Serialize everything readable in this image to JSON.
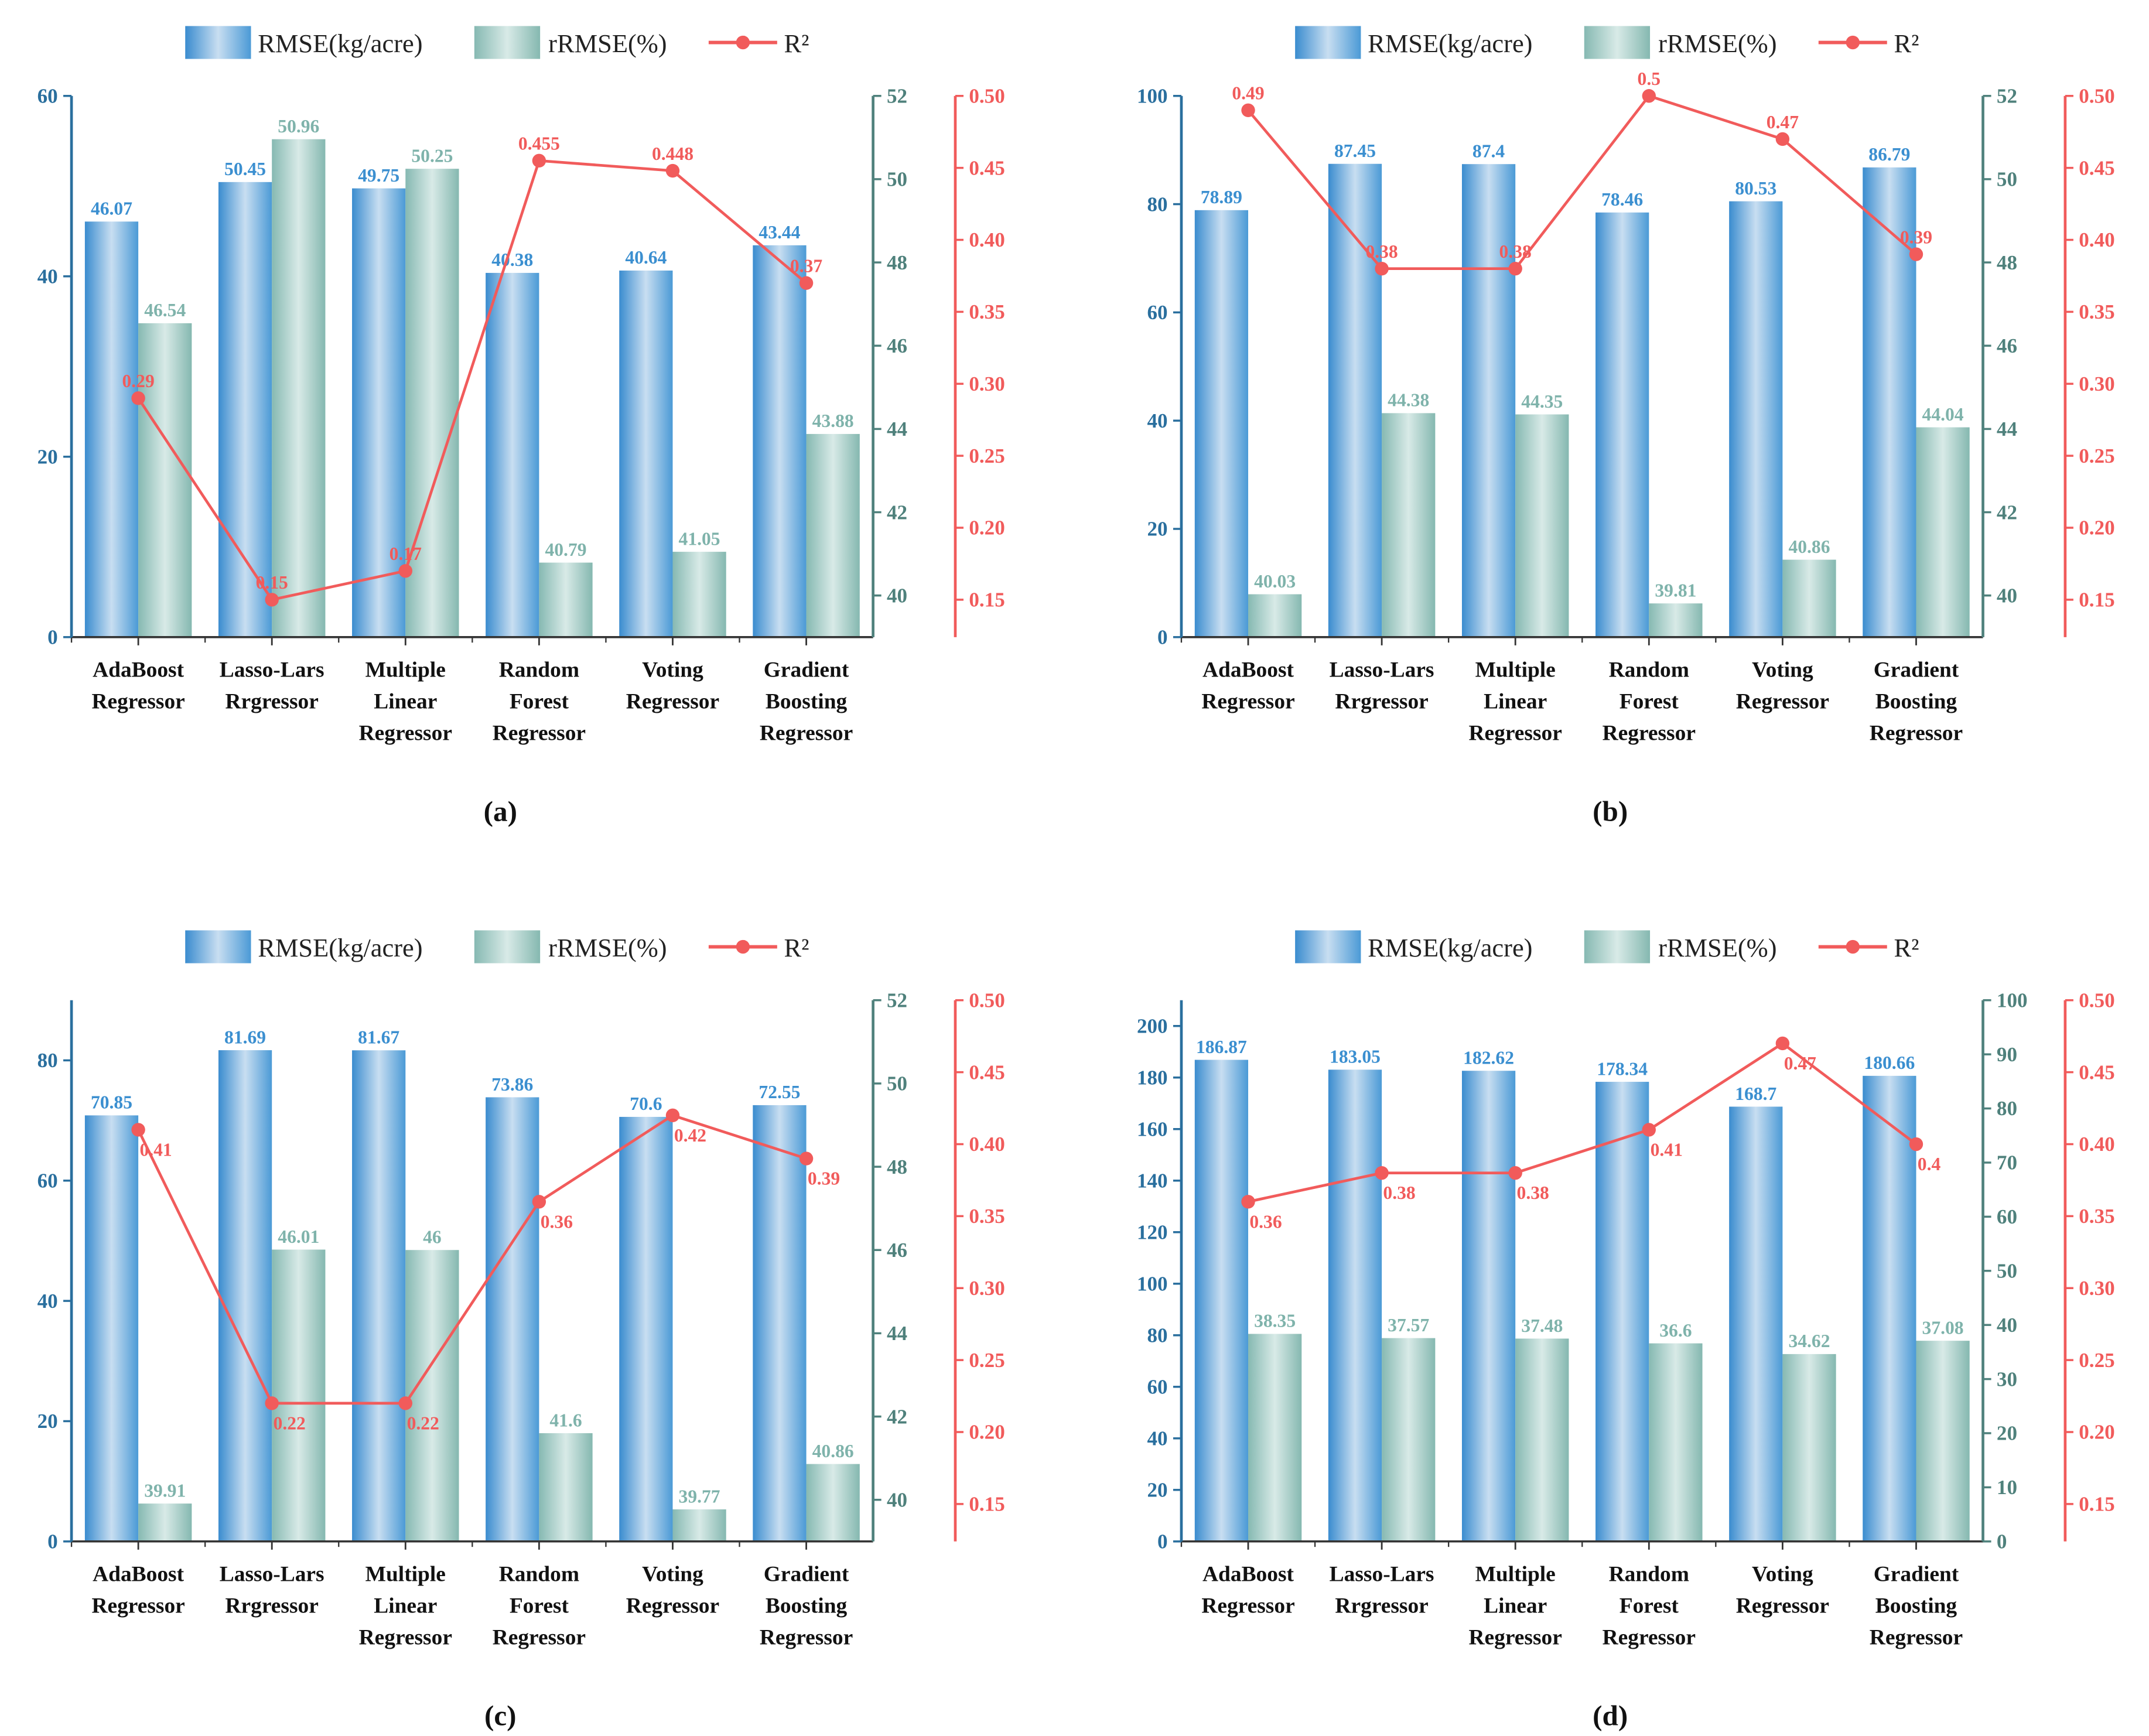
{
  "legend": {
    "rmse": "RMSE(kg/acre)",
    "rrmse": "rRMSE(%)",
    "r2": "R²"
  },
  "colors": {
    "rmse_axis": "#2a6f9e",
    "rrmse_axis": "#4f817c",
    "r2": "#f15b5b",
    "rmse_label": "#3b8fd0",
    "rrmse_label": "#7fb3ab"
  },
  "chart_data": [
    {
      "type": "bar+line",
      "title": "(a)",
      "categories": [
        "AdaBoost Regressor",
        "Lasso-Lars Rrgressor",
        "Multiple Linear Regressor",
        "Random Forest Regressor",
        "Voting Regressor",
        "Gradient Boosting Regressor"
      ],
      "series": [
        {
          "name": "RMSE(kg/acre)",
          "axis": "left",
          "values": [
            46.07,
            50.45,
            49.75,
            40.38,
            40.64,
            43.44
          ]
        },
        {
          "name": "rRMSE(%)",
          "axis": "right1",
          "values": [
            46.54,
            50.96,
            50.25,
            40.79,
            41.05,
            43.88
          ]
        },
        {
          "name": "R²",
          "axis": "right2",
          "values": [
            0.29,
            0.15,
            0.17,
            0.455,
            0.448,
            0.37
          ]
        }
      ],
      "left_axis": {
        "range": [
          0,
          60
        ],
        "ticks": [
          0,
          20,
          40,
          60
        ]
      },
      "right1_axis": {
        "range": [
          39,
          52
        ],
        "ticks": [
          40,
          42,
          44,
          46,
          48,
          50,
          52
        ]
      },
      "right2_axis": {
        "range": [
          0.124,
          0.5
        ],
        "ticks": [
          "0.15",
          "0.20",
          "0.25",
          "0.30",
          "0.35",
          "0.40",
          "0.45",
          "0.50"
        ]
      },
      "legend_position": "top-center"
    },
    {
      "type": "bar+line",
      "title": "(b)",
      "categories": [
        "AdaBoost Regressor",
        "Lasso-Lars Rrgressor",
        "Multiple Linear Regressor",
        "Random Forest Regressor",
        "Voting Regressor",
        "Gradient Boosting Regressor"
      ],
      "series": [
        {
          "name": "RMSE(kg/acre)",
          "axis": "left",
          "values": [
            78.89,
            87.45,
            87.4,
            78.46,
            80.53,
            86.79
          ]
        },
        {
          "name": "rRMSE(%)",
          "axis": "right1",
          "values": [
            40.03,
            44.38,
            44.35,
            39.81,
            40.86,
            44.04
          ]
        },
        {
          "name": "R²",
          "axis": "right2",
          "values": [
            0.49,
            0.38,
            0.38,
            0.5,
            0.47,
            0.39
          ]
        }
      ],
      "left_axis": {
        "range": [
          0,
          100
        ],
        "ticks": [
          0,
          20,
          40,
          60,
          80,
          100
        ]
      },
      "right1_axis": {
        "range": [
          39,
          52
        ],
        "ticks": [
          40,
          42,
          44,
          46,
          48,
          50,
          52
        ]
      },
      "right2_axis": {
        "range": [
          0.124,
          0.5
        ],
        "ticks": [
          "0.15",
          "0.20",
          "0.25",
          "0.30",
          "0.35",
          "0.40",
          "0.45",
          "0.50"
        ]
      },
      "legend_position": "top-center"
    },
    {
      "type": "bar+line",
      "title": "(c)",
      "categories": [
        "AdaBoost Regressor",
        "Lasso-Lars Rrgressor",
        "Multiple Linear Regressor",
        "Random Forest Regressor",
        "Voting Regressor",
        "Gradient Boosting Regressor"
      ],
      "series": [
        {
          "name": "RMSE(kg/acre)",
          "axis": "left",
          "values": [
            70.85,
            81.69,
            81.67,
            73.86,
            70.6,
            72.55
          ]
        },
        {
          "name": "rRMSE(%)",
          "axis": "right1",
          "values": [
            39.91,
            46.01,
            46,
            41.6,
            39.77,
            40.86
          ]
        },
        {
          "name": "R²",
          "axis": "right2",
          "values": [
            0.41,
            0.22,
            0.22,
            0.36,
            0.42,
            0.39
          ]
        }
      ],
      "left_axis": {
        "range": [
          0,
          90
        ],
        "ticks": [
          0,
          20,
          40,
          60,
          80
        ]
      },
      "right1_axis": {
        "range": [
          39,
          52
        ],
        "ticks": [
          40,
          42,
          44,
          46,
          48,
          50,
          52
        ]
      },
      "right2_axis": {
        "range": [
          0.124,
          0.5
        ],
        "ticks": [
          "0.15",
          "0.20",
          "0.25",
          "0.30",
          "0.35",
          "0.40",
          "0.45",
          "0.50"
        ]
      },
      "legend_position": "top-center"
    },
    {
      "type": "bar+line",
      "title": "(d)",
      "categories": [
        "AdaBoost Regressor",
        "Lasso-Lars Rrgressor",
        "Multiple Linear Regressor",
        "Random Forest Regressor",
        "Voting Regressor",
        "Gradient Boosting Regressor"
      ],
      "series": [
        {
          "name": "RMSE(kg/acre)",
          "axis": "left",
          "values": [
            186.87,
            183.05,
            182.62,
            178.34,
            168.7,
            180.66
          ]
        },
        {
          "name": "rRMSE(%)",
          "axis": "right1",
          "values": [
            38.35,
            37.57,
            37.48,
            36.6,
            34.62,
            37.08
          ]
        },
        {
          "name": "R²",
          "axis": "right2",
          "values": [
            0.36,
            0.38,
            0.38,
            0.41,
            0.47,
            0.4
          ]
        }
      ],
      "left_axis": {
        "range": [
          0,
          210
        ],
        "ticks": [
          0,
          20,
          40,
          60,
          80,
          100,
          120,
          140,
          160,
          180,
          200
        ]
      },
      "right1_axis": {
        "range": [
          0,
          100
        ],
        "ticks": [
          0,
          10,
          20,
          30,
          40,
          50,
          60,
          70,
          80,
          90,
          100
        ]
      },
      "right2_axis": {
        "range": [
          0.124,
          0.5
        ],
        "ticks": [
          "0.15",
          "0.20",
          "0.25",
          "0.30",
          "0.35",
          "0.40",
          "0.45",
          "0.50"
        ]
      },
      "legend_position": "top-center"
    }
  ]
}
